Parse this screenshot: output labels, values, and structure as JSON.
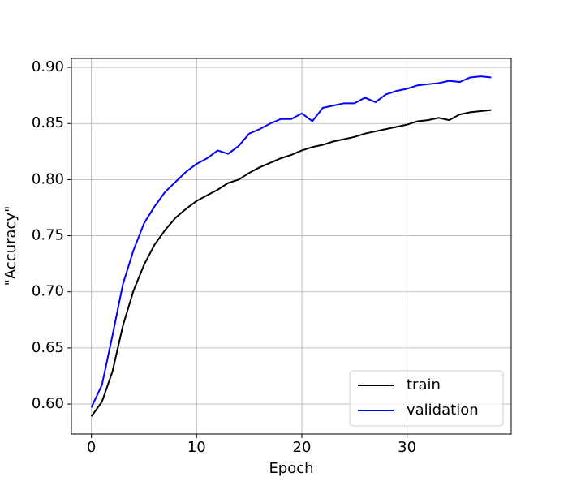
{
  "chart_data": {
    "type": "line",
    "x_label": "Epoch",
    "y_label": "\"Accuracy\"",
    "x": [
      0,
      1,
      2,
      3,
      4,
      5,
      6,
      7,
      8,
      9,
      10,
      11,
      12,
      13,
      14,
      15,
      16,
      17,
      18,
      19,
      20,
      21,
      22,
      23,
      24,
      25,
      26,
      27,
      28,
      29,
      30,
      31,
      32,
      33,
      34,
      35,
      36,
      37,
      38
    ],
    "series": [
      {
        "name": "train",
        "color": "#000000",
        "values": [
          0.589,
          0.602,
          0.629,
          0.67,
          0.701,
          0.724,
          0.742,
          0.755,
          0.766,
          0.774,
          0.781,
          0.786,
          0.791,
          0.797,
          0.8,
          0.806,
          0.811,
          0.815,
          0.819,
          0.822,
          0.826,
          0.829,
          0.831,
          0.834,
          0.836,
          0.838,
          0.841,
          0.843,
          0.845,
          0.847,
          0.849,
          0.852,
          0.853,
          0.855,
          0.853,
          0.858,
          0.86,
          0.861,
          0.862
        ]
      },
      {
        "name": "validation",
        "color": "#0000ff",
        "values": [
          0.597,
          0.617,
          0.661,
          0.707,
          0.737,
          0.761,
          0.776,
          0.789,
          0.798,
          0.807,
          0.814,
          0.819,
          0.826,
          0.823,
          0.83,
          0.841,
          0.845,
          0.85,
          0.854,
          0.854,
          0.859,
          0.852,
          0.864,
          0.866,
          0.868,
          0.868,
          0.873,
          0.869,
          0.876,
          0.879,
          0.881,
          0.884,
          0.885,
          0.886,
          0.888,
          0.887,
          0.891,
          0.892,
          0.891
        ]
      }
    ],
    "xlim": [
      -1.9,
      39.9
    ],
    "xticks": [
      0,
      10,
      20,
      30
    ],
    "ylim": [
      0.5733,
      0.908
    ],
    "yticks": [
      {
        "value": 0.6,
        "label": "0.60"
      },
      {
        "value": 0.65,
        "label": "0.65"
      },
      {
        "value": 0.7,
        "label": "0.70"
      },
      {
        "value": 0.75,
        "label": "0.75"
      },
      {
        "value": 0.8,
        "label": "0.80"
      },
      {
        "value": 0.85,
        "label": "0.85"
      },
      {
        "value": 0.9,
        "label": "0.90"
      }
    ],
    "grid": true,
    "legend": "lower right"
  }
}
